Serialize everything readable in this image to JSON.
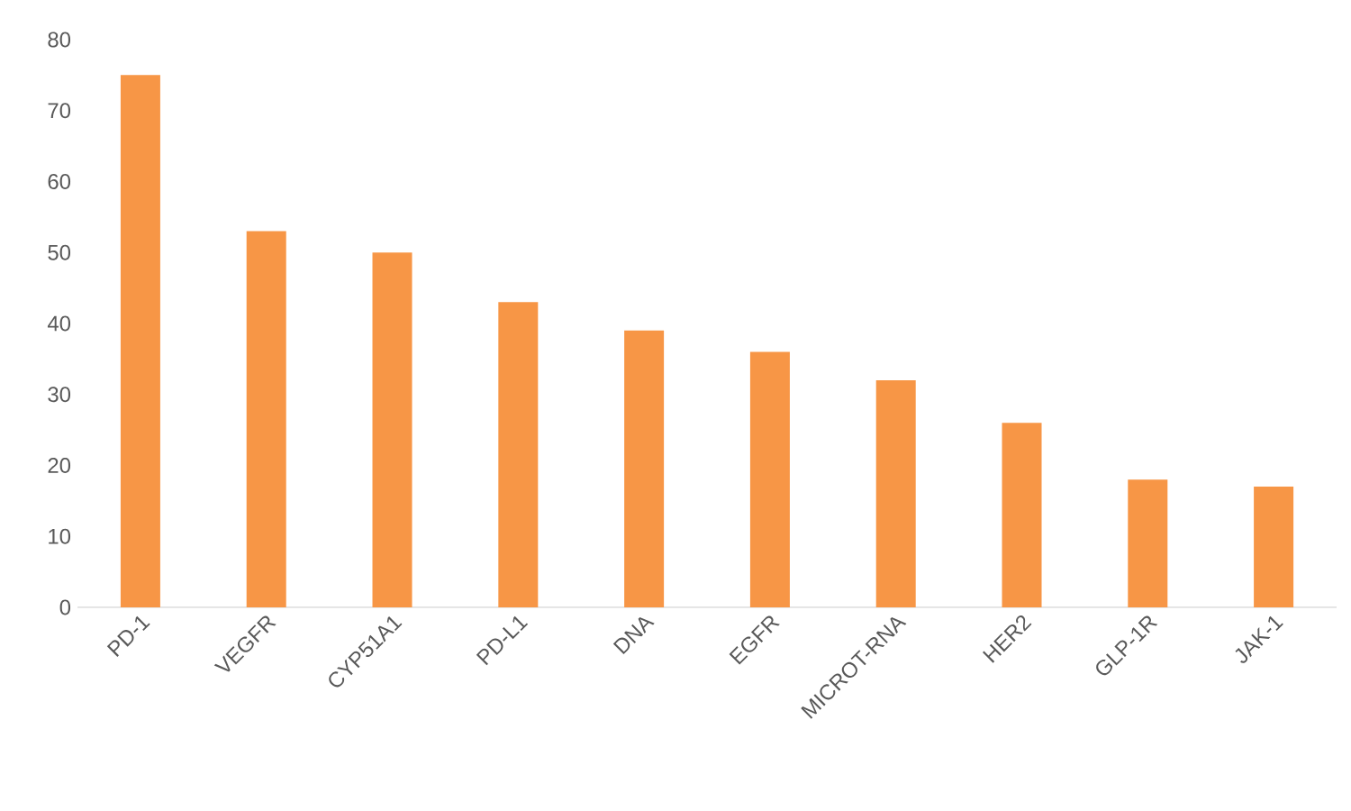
{
  "chart_data": {
    "type": "bar",
    "categories": [
      "PD-1",
      "VEGFR",
      "CYP51A1",
      "PD-L1",
      "DNA",
      "EGFR",
      "MICROT-RNA",
      "HER2",
      "GLP-1R",
      "JAK-1"
    ],
    "values": [
      75,
      53,
      50,
      43,
      39,
      36,
      32,
      26,
      18,
      17
    ],
    "color": "#f79646",
    "ylim": [
      0,
      80
    ],
    "yticks": [
      0,
      10,
      20,
      30,
      40,
      50,
      60,
      70,
      80
    ]
  }
}
